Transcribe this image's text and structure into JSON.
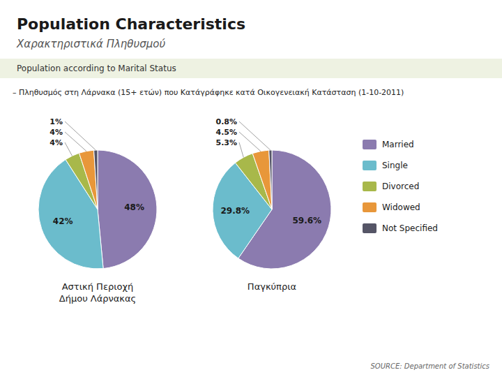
{
  "title": "Population Characteristics",
  "subtitle": "Χαρακτηριστικά Πληθυσμού",
  "annotations": [
    "Population according to Marital Status",
    "– Πληθυσμός στη Λάρνακα (15+ ετών) που Κατάγράφηκε κατά Οικογενειακή Κατάσταση (1-10-2011)",
    "SOURCE: Department of Statistics"
  ],
  "chart_data": [
    {
      "type": "pie",
      "title": "Αστική Περιοχή\nΔήμου Λάρνακας",
      "categories": [
        "Married",
        "Single",
        "Divorced",
        "Widowed",
        "Not Specified"
      ],
      "values": [
        48,
        42,
        4,
        4,
        1
      ],
      "value_labels": [
        "48%",
        "42%",
        "4%",
        "4%",
        "1%"
      ],
      "colors": [
        "#8B7BAF",
        "#6BBCCC",
        "#A8B84A",
        "#E8973A",
        "#555566"
      ],
      "data_labels": true
    },
    {
      "type": "pie",
      "title": "Παγκύπρια",
      "values": [
        59.6,
        29.8,
        5.3,
        4.5,
        0.8
      ],
      "value_labels": [
        "59.6%",
        "29.8%",
        "5.3%",
        "4.5%",
        "0.8%"
      ],
      "colors": [
        "#8B7BAF",
        "#6BBCCC",
        "#A8B84A",
        "#E8973A",
        "#555566"
      ],
      "data_labels": true
    }
  ]
}
